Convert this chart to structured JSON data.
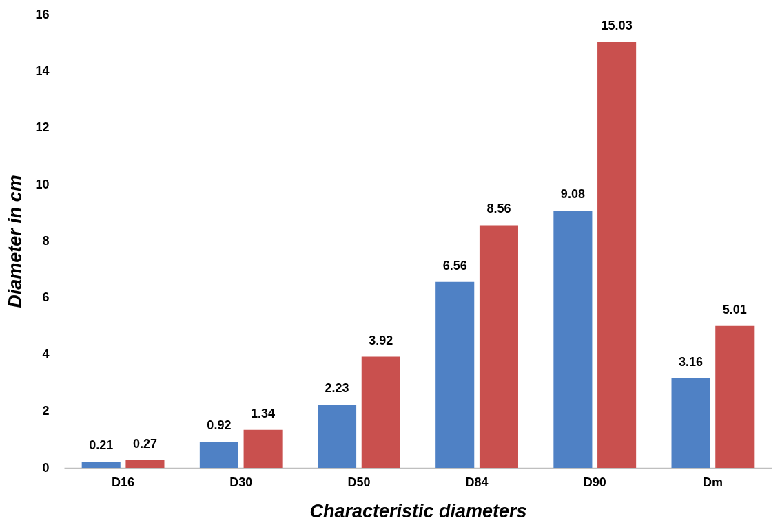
{
  "chart_data": {
    "type": "bar",
    "xlabel": "Characteristic diameters",
    "ylabel": "Diameter in cm",
    "categories": [
      "D16",
      "D30",
      "D50",
      "D84",
      "D90",
      "Dm"
    ],
    "series": [
      {
        "color": "#4f81c5",
        "values": [
          0.21,
          0.92,
          2.23,
          6.56,
          9.08,
          3.16
        ]
      },
      {
        "color": "#c9504e",
        "values": [
          0.27,
          1.34,
          3.92,
          8.56,
          15.03,
          5.01
        ]
      }
    ],
    "ylim": [
      0,
      16
    ],
    "yticks": [
      0,
      2,
      4,
      6,
      8,
      10,
      12,
      14,
      16
    ],
    "grid": false,
    "legend": false,
    "data_labels": true
  }
}
